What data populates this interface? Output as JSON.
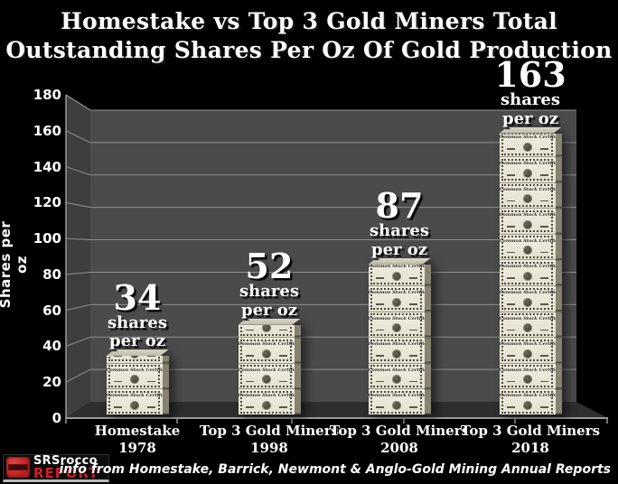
{
  "title": {
    "line1": "Homestake vs Top 3 Gold Miners Total",
    "line2": "Outstanding Shares Per Oz Of Gold Production"
  },
  "footer": "info from Homestake, Barrick, Newmont & Anglo-Gold Mining Annual Reports",
  "logo": {
    "name": "SRSrocco",
    "report": "REPORT",
    "icon": "red-barrel-icon"
  },
  "chart_data": {
    "type": "bar",
    "title": "Homestake vs Top 3 Gold Miners Total Outstanding Shares Per Oz Of Gold Production",
    "categories": [
      {
        "line1": "Homestake",
        "line2": "1978"
      },
      {
        "line1": "Top 3 Gold Miners",
        "line2": "1998"
      },
      {
        "line1": "Top 3 Gold Miners",
        "line2": "2008"
      },
      {
        "line1": "Top 3 Gold Miners",
        "line2": "2018"
      }
    ],
    "values": [
      34,
      52,
      87,
      163
    ],
    "value_label_lines": [
      "shares",
      "per oz"
    ],
    "ylabel": "Shares per oz",
    "xlabel": "",
    "ylim": [
      0,
      180
    ],
    "yticks": [
      0,
      20,
      40,
      60,
      80,
      100,
      120,
      140,
      160,
      180
    ],
    "grid": true,
    "legend": false,
    "style_3d": true,
    "bar_visual": "stacked-stock-certificates",
    "cert_text": "Common Stock Certificate",
    "colors": {
      "background": "#000000",
      "back_wall": "#4b4b4b",
      "side_wall": "#3e3e3e",
      "floor": "#2e2e2e",
      "gridline": "#8f8f8f",
      "certificate": "#e9e7d8",
      "label_text": "#ffffff",
      "logo_red": "#d21f26"
    }
  }
}
